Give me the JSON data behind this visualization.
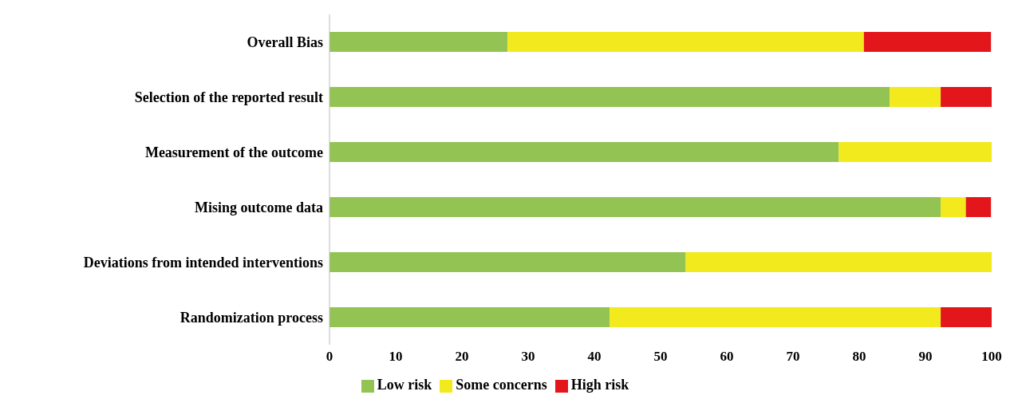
{
  "chart_data": {
    "type": "bar",
    "orientation": "horizontal",
    "stacked": true,
    "categories": [
      "Overall Bias",
      "Selection of the reported result",
      "Measurement of the outcome",
      "Mising outcome data",
      "Deviations from intended interventions",
      "Randomization process"
    ],
    "series": [
      {
        "name": "Low risk",
        "color": "#92c353",
        "values": [
          26.9,
          84.6,
          76.9,
          92.3,
          53.8,
          42.3
        ]
      },
      {
        "name": "Some concerns",
        "color": "#f2ea1d",
        "values": [
          53.8,
          7.7,
          23.1,
          3.8,
          46.2,
          50.0
        ]
      },
      {
        "name": "High risk",
        "color": "#e3161c",
        "values": [
          19.2,
          7.7,
          0,
          3.8,
          0,
          7.7
        ]
      }
    ],
    "xlim": [
      0,
      100
    ],
    "xticks": [
      0,
      10,
      20,
      30,
      40,
      50,
      60,
      70,
      80,
      90,
      100
    ],
    "grid": false,
    "legend": "bottom"
  }
}
